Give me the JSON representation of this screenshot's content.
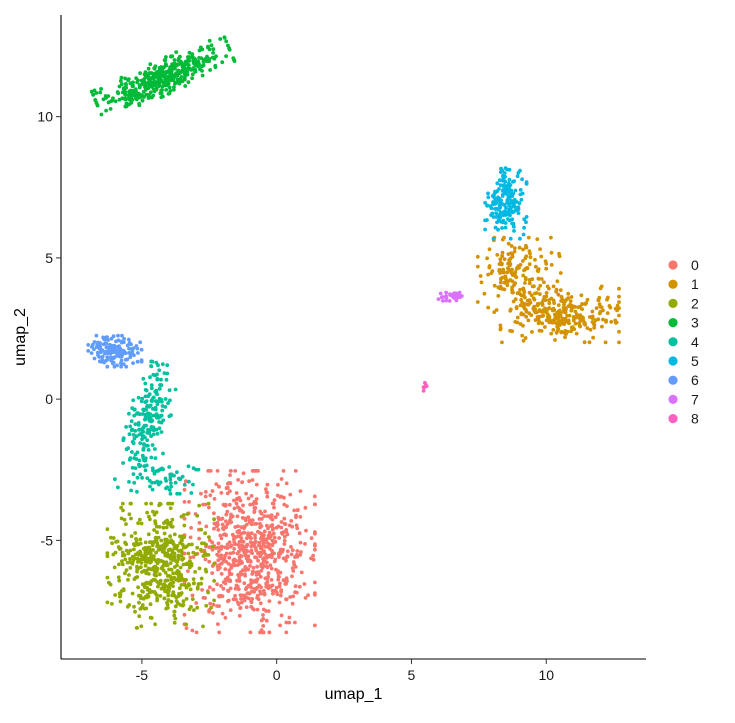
{
  "chart_data": {
    "type": "scatter",
    "title": "",
    "xlabel": "umap_1",
    "ylabel": "umap_2",
    "xlim": [
      -8,
      13.7
    ],
    "ylim": [
      -9.2,
      13.6
    ],
    "xticks": [
      -5,
      0,
      5,
      10
    ],
    "yticks": [
      -5,
      0,
      5,
      10
    ],
    "xtick_labels": [
      "-5",
      "0",
      "5",
      "10"
    ],
    "ytick_labels": [
      "-5",
      "0",
      "5",
      "10"
    ],
    "grid": false,
    "legend_position": "right",
    "series": [
      {
        "name": "0",
        "color": "#F8766D",
        "n": 700,
        "clusters": [
          {
            "center": [
              -1.0,
              -5.4
            ],
            "sd": [
              1.1,
              1.3
            ],
            "rot": 0,
            "n": 700
          }
        ]
      },
      {
        "name": "1",
        "color": "#D39200",
        "n": 450,
        "clusters": [
          {
            "center": [
              10.5,
              3.0
            ],
            "sd": [
              1.0,
              0.45
            ],
            "rot": 0,
            "n": 280
          },
          {
            "center": [
              9.0,
              4.4
            ],
            "sd": [
              0.7,
              0.6
            ],
            "rot": 0,
            "n": 170
          }
        ]
      },
      {
        "name": "2",
        "color": "#93AA00",
        "n": 520,
        "clusters": [
          {
            "center": [
              -4.3,
              -5.9
            ],
            "sd": [
              0.9,
              1.0
            ],
            "rot": 0,
            "n": 520
          }
        ]
      },
      {
        "name": "3",
        "color": "#00BA38",
        "n": 420,
        "clusters": [
          {
            "center": [
              -4.2,
              11.4
            ],
            "sd": [
              1.2,
              0.28
            ],
            "rot": 0.42,
            "n": 420
          }
        ]
      },
      {
        "name": "4",
        "color": "#00C19F",
        "n": 260,
        "clusters": [
          {
            "center": [
              -4.8,
              -1.0
            ],
            "sd": [
              0.35,
              1.05
            ],
            "rot": -0.22,
            "n": 210
          },
          {
            "center": [
              -4.0,
              -2.8
            ],
            "sd": [
              0.5,
              0.25
            ],
            "rot": 0,
            "n": 50
          }
        ]
      },
      {
        "name": "5",
        "color": "#00B9E3",
        "n": 170,
        "clusters": [
          {
            "center": [
              8.5,
              7.0
            ],
            "sd": [
              0.35,
              0.6
            ],
            "rot": 0,
            "n": 170
          }
        ]
      },
      {
        "name": "6",
        "color": "#619CFF",
        "n": 150,
        "clusters": [
          {
            "center": [
              -6.0,
              1.7
            ],
            "sd": [
              0.45,
              0.25
            ],
            "rot": 0,
            "n": 150
          }
        ]
      },
      {
        "name": "7",
        "color": "#DB72FB",
        "n": 35,
        "clusters": [
          {
            "center": [
              6.5,
              3.65
            ],
            "sd": [
              0.25,
              0.08
            ],
            "rot": 0,
            "n": 35
          }
        ]
      },
      {
        "name": "8",
        "color": "#FF61C3",
        "n": 6,
        "clusters": [
          {
            "center": [
              5.5,
              0.45
            ],
            "sd": [
              0.04,
              0.08
            ],
            "rot": 0,
            "n": 6
          }
        ]
      }
    ]
  }
}
